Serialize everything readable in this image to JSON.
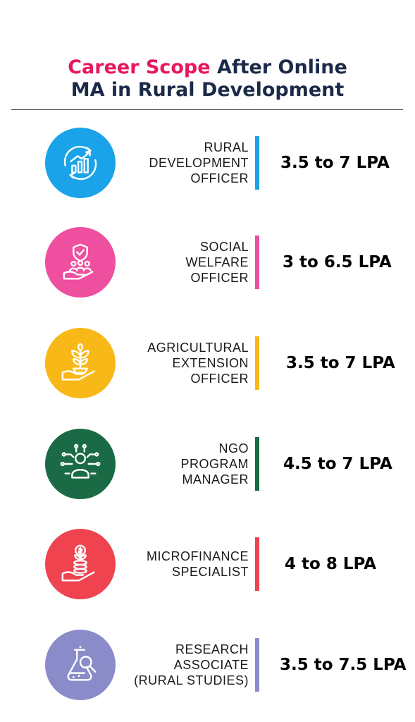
{
  "title": {
    "accent": "Career Scope",
    "rest": " After Online",
    "line2": "MA in Rural Development",
    "accent_color": "#e8175d",
    "text_color": "#1b2a48"
  },
  "careers": [
    {
      "icon": "growth-chart-icon",
      "color": "#1aa3e8",
      "lines": [
        "RURAL",
        "DEVELOPMENT",
        "OFFICER"
      ],
      "salary": "3.5 to 7 LPA"
    },
    {
      "icon": "community-shield-hand-icon",
      "color": "#ee4f9f",
      "lines": [
        "SOCIAL",
        "WELFARE",
        "OFFICER"
      ],
      "salary": "3 to 6.5 LPA"
    },
    {
      "icon": "plant-hand-icon",
      "color": "#f8b918",
      "lines": [
        "AGRICULTURAL",
        "EXTENSION",
        "OFFICER"
      ],
      "salary": "3.5 to 7 LPA"
    },
    {
      "icon": "network-person-icon",
      "color": "#1a6b45",
      "lines": [
        "NGO",
        "PROGRAM",
        "MANAGER"
      ],
      "salary": "4.5 to 7 LPA"
    },
    {
      "icon": "coin-plant-hand-icon",
      "color": "#ef4350",
      "lines": [
        "MICROFINANCE",
        "SPECIALIST"
      ],
      "salary": "4 to 8 LPA"
    },
    {
      "icon": "research-flask-icon",
      "color": "#8a8bc9",
      "lines": [
        "RESEARCH",
        "ASSOCIATE",
        "(RURAL STUDIES)"
      ],
      "salary": "3.5 to 7.5 LPA"
    }
  ]
}
